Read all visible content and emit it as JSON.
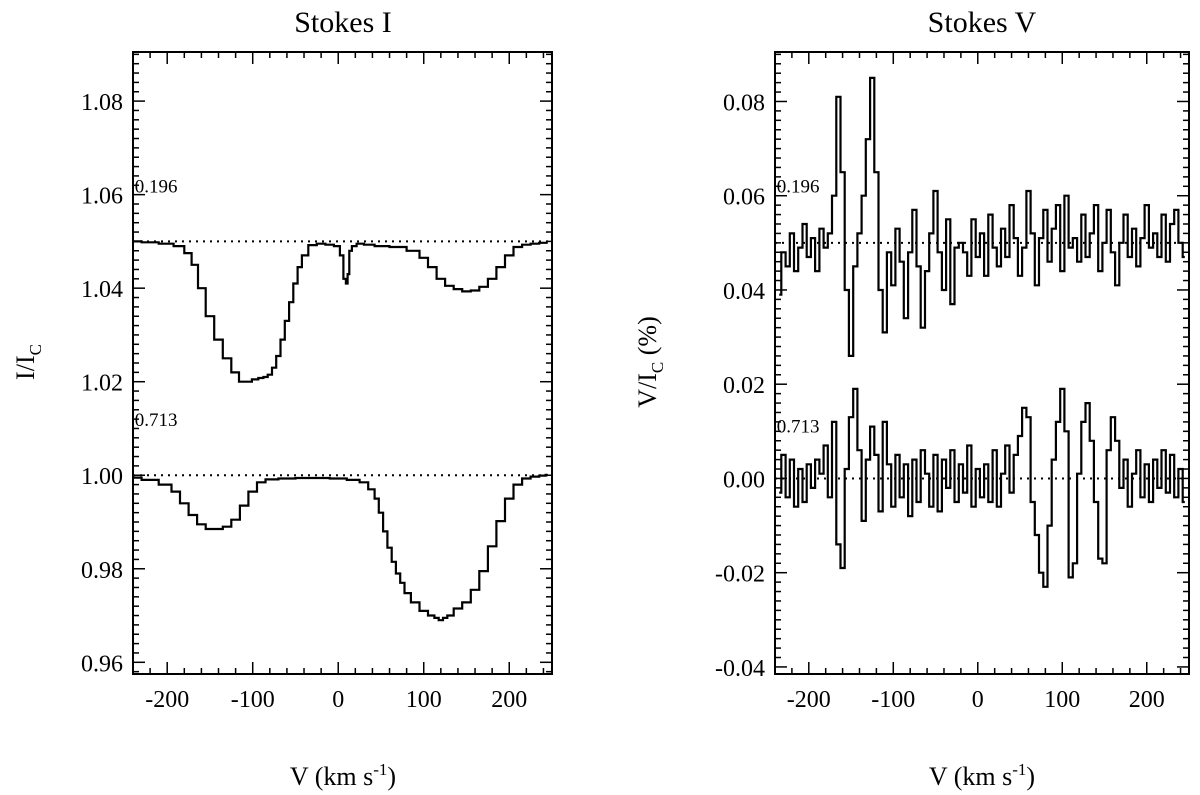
{
  "chart_data": [
    {
      "type": "line",
      "title": "Stokes I",
      "xlabel": "V (km s",
      "xlabel_sup": "-1",
      "xlabel_end": ")",
      "ylabel": "I/I",
      "ylabel_sub": "C",
      "xlim": [
        -240,
        250
      ],
      "ylim": [
        0.9575,
        1.0905
      ],
      "x_ticks": [
        -200,
        -100,
        0,
        100,
        200
      ],
      "x_tick_labels": [
        "-200",
        "-100",
        "0",
        "100",
        "200"
      ],
      "y_ticks": [
        0.96,
        0.98,
        1.0,
        1.02,
        1.04,
        1.06,
        1.08
      ],
      "y_tick_labels": [
        "0.96",
        "0.98",
        "1.00",
        "1.02",
        "1.04",
        "1.06",
        "1.08"
      ],
      "reference_lines": [
        1.05,
        1.0
      ],
      "annotations": [
        {
          "text": "0.196",
          "x": -238,
          "y": 1.0605
        },
        {
          "text": "0.713",
          "x": -238,
          "y": 1.0105
        }
      ],
      "series": [
        {
          "name": "0.196",
          "x": [
            -240,
            -220,
            -200,
            -185,
            -175,
            -168,
            -160,
            -150,
            -140,
            -130,
            -120,
            -112,
            -105,
            -97,
            -90,
            -85,
            -80,
            -75,
            -70,
            -65,
            -60,
            -55,
            -50,
            -45,
            -40,
            -30,
            -20,
            -10,
            0,
            4,
            8,
            10,
            12,
            14,
            18,
            25,
            35,
            50,
            70,
            90,
            100,
            110,
            120,
            130,
            140,
            150,
            160,
            170,
            180,
            190,
            200,
            210,
            220,
            230,
            240,
            245
          ],
          "y": [
            1.05,
            1.0498,
            1.0495,
            1.049,
            1.0475,
            1.045,
            1.04,
            1.034,
            1.029,
            1.025,
            1.022,
            1.02,
            1.02,
            1.0205,
            1.0208,
            1.021,
            1.0215,
            1.023,
            1.0255,
            1.029,
            1.033,
            1.037,
            1.041,
            1.0445,
            1.047,
            1.0492,
            1.0495,
            1.0493,
            1.049,
            1.047,
            1.042,
            1.041,
            1.043,
            1.048,
            1.049,
            1.0495,
            1.0493,
            1.049,
            1.0488,
            1.048,
            1.0465,
            1.0445,
            1.042,
            1.0405,
            1.0398,
            1.0393,
            1.0395,
            1.0403,
            1.042,
            1.0445,
            1.047,
            1.0488,
            1.0493,
            1.0495,
            1.0497,
            1.0497
          ]
        },
        {
          "name": "0.713",
          "x": [
            -240,
            -220,
            -200,
            -190,
            -180,
            -170,
            -160,
            -150,
            -140,
            -130,
            -120,
            -110,
            -100,
            -90,
            -80,
            -60,
            -40,
            -20,
            0,
            20,
            30,
            40,
            45,
            50,
            55,
            60,
            65,
            70,
            75,
            80,
            90,
            100,
            110,
            115,
            120,
            125,
            130,
            140,
            150,
            160,
            170,
            180,
            190,
            200,
            210,
            220,
            230,
            240,
            245
          ],
          "y": [
            0.9995,
            0.999,
            0.998,
            0.9965,
            0.994,
            0.9915,
            0.9895,
            0.9885,
            0.9885,
            0.989,
            0.9905,
            0.9935,
            0.9965,
            0.9985,
            0.9991,
            0.9993,
            0.9994,
            0.9994,
            0.9993,
            0.999,
            0.9985,
            0.997,
            0.995,
            0.992,
            0.988,
            0.9845,
            0.9815,
            0.979,
            0.977,
            0.9748,
            0.9728,
            0.971,
            0.97,
            0.9695,
            0.969,
            0.9695,
            0.97,
            0.9715,
            0.9728,
            0.9755,
            0.9795,
            0.9848,
            0.9902,
            0.995,
            0.998,
            0.9993,
            0.9997,
            0.9999,
            1.0001
          ]
        }
      ]
    },
    {
      "type": "line",
      "title": "Stokes V",
      "xlabel": "V (km s",
      "xlabel_sup": "-1",
      "xlabel_end": ")",
      "ylabel": "V/I",
      "ylabel_sub": "C",
      "ylabel_end": " (%)",
      "xlim": [
        -240,
        250
      ],
      "ylim": [
        -0.0415,
        0.0905
      ],
      "x_ticks": [
        -200,
        -100,
        0,
        100,
        200
      ],
      "x_tick_labels": [
        "-200",
        "-100",
        "0",
        "100",
        "200"
      ],
      "y_ticks": [
        -0.04,
        -0.02,
        0.0,
        0.02,
        0.04,
        0.06,
        0.08
      ],
      "y_tick_labels": [
        "-0.04",
        "-0.02",
        "0.00",
        "0.02",
        "0.04",
        "0.06",
        "0.08"
      ],
      "reference_lines": [
        0.05,
        0.0
      ],
      "annotations": [
        {
          "text": "0.196",
          "x": -238,
          "y": 0.0607
        },
        {
          "text": "0.713",
          "x": -238,
          "y": 0.0097
        }
      ],
      "series": [
        {
          "name": "0.196",
          "x": [
            -235,
            -230,
            -225,
            -220,
            -215,
            -210,
            -205,
            -200,
            -195,
            -190,
            -185,
            -180,
            -175,
            -170,
            -165,
            -160,
            -155,
            -150,
            -145,
            -140,
            -135,
            -130,
            -125,
            -120,
            -115,
            -110,
            -105,
            -100,
            -95,
            -90,
            -85,
            -80,
            -75,
            -70,
            -65,
            -60,
            -55,
            -50,
            -45,
            -40,
            -35,
            -30,
            -25,
            -20,
            -15,
            -10,
            -5,
            0,
            5,
            10,
            15,
            20,
            25,
            30,
            35,
            40,
            45,
            50,
            55,
            60,
            65,
            70,
            75,
            80,
            85,
            90,
            95,
            100,
            105,
            110,
            115,
            120,
            125,
            130,
            135,
            140,
            145,
            150,
            155,
            160,
            165,
            170,
            175,
            180,
            185,
            190,
            195,
            200,
            205,
            210,
            215,
            220,
            225,
            230,
            235,
            240,
            245
          ],
          "y": [
            0.039,
            0.048,
            0.045,
            0.052,
            0.044,
            0.049,
            0.054,
            0.047,
            0.051,
            0.044,
            0.053,
            0.049,
            0.052,
            0.06,
            0.081,
            0.065,
            0.04,
            0.026,
            0.045,
            0.052,
            0.06,
            0.072,
            0.085,
            0.065,
            0.04,
            0.031,
            0.048,
            0.041,
            0.053,
            0.046,
            0.034,
            0.048,
            0.057,
            0.045,
            0.032,
            0.044,
            0.052,
            0.061,
            0.048,
            0.04,
            0.055,
            0.037,
            0.049,
            0.05,
            0.048,
            0.043,
            0.055,
            0.047,
            0.052,
            0.043,
            0.056,
            0.049,
            0.045,
            0.053,
            0.047,
            0.058,
            0.051,
            0.043,
            0.049,
            0.061,
            0.052,
            0.041,
            0.051,
            0.057,
            0.046,
            0.053,
            0.058,
            0.044,
            0.06,
            0.049,
            0.051,
            0.046,
            0.056,
            0.047,
            0.052,
            0.058,
            0.044,
            0.05,
            0.057,
            0.048,
            0.041,
            0.05,
            0.056,
            0.047,
            0.053,
            0.045,
            0.051,
            0.058,
            0.049,
            0.052,
            0.047,
            0.056,
            0.046,
            0.054,
            0.057,
            0.05,
            0.047
          ]
        },
        {
          "name": "0.713",
          "x": [
            -235,
            -230,
            -225,
            -220,
            -215,
            -210,
            -205,
            -200,
            -195,
            -190,
            -185,
            -180,
            -175,
            -170,
            -165,
            -160,
            -155,
            -150,
            -145,
            -140,
            -135,
            -130,
            -125,
            -120,
            -115,
            -110,
            -105,
            -100,
            -95,
            -90,
            -85,
            -80,
            -75,
            -70,
            -65,
            -60,
            -55,
            -50,
            -45,
            -40,
            -35,
            -30,
            -25,
            -20,
            -15,
            -10,
            -5,
            0,
            5,
            10,
            15,
            20,
            25,
            30,
            35,
            40,
            45,
            50,
            55,
            60,
            65,
            70,
            75,
            80,
            85,
            90,
            95,
            100,
            105,
            110,
            115,
            120,
            125,
            130,
            135,
            140,
            145,
            150,
            155,
            160,
            165,
            170,
            175,
            180,
            185,
            190,
            195,
            200,
            205,
            210,
            215,
            220,
            225,
            230,
            235,
            240,
            245
          ],
          "y": [
            -0.003,
            0.005,
            -0.004,
            0.004,
            -0.006,
            0.002,
            -0.005,
            0.003,
            -0.002,
            0.004,
            0.001,
            0.007,
            -0.004,
            0.012,
            -0.014,
            -0.019,
            0.002,
            0.013,
            0.019,
            0.006,
            -0.009,
            0.004,
            0.011,
            0.005,
            -0.007,
            0.012,
            0.003,
            -0.006,
            0.005,
            -0.004,
            0.003,
            -0.008,
            0.004,
            -0.005,
            0.006,
            0.001,
            -0.006,
            0.005,
            -0.007,
            0.004,
            -0.002,
            0.006,
            -0.005,
            0.003,
            -0.003,
            0.007,
            -0.006,
            0.002,
            -0.004,
            0.003,
            -0.005,
            0.006,
            -0.006,
            0.001,
            0.007,
            -0.003,
            0.005,
            0.009,
            0.015,
            0.013,
            -0.005,
            -0.012,
            -0.02,
            -0.023,
            -0.01,
            0.004,
            0.012,
            0.019,
            0.01,
            -0.021,
            -0.018,
            0.001,
            0.012,
            0.016,
            0.008,
            -0.005,
            -0.017,
            -0.018,
            0.006,
            0.013,
            0.008,
            -0.002,
            0.004,
            -0.006,
            0.001,
            0.006,
            -0.004,
            0.003,
            -0.005,
            0.004,
            -0.002,
            0.006,
            -0.003,
            0.005,
            -0.004,
            0.002,
            -0.005
          ]
        }
      ]
    }
  ]
}
